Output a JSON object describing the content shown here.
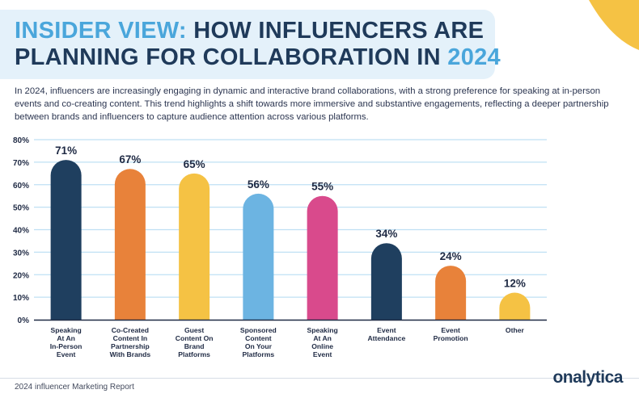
{
  "title": {
    "accent": "INSIDER VIEW:",
    "line1_rest": "HOW INFLUENCERS ARE",
    "line2": "PLANNING FOR COLLABORATION IN",
    "year": "2024"
  },
  "intro": "In 2024, influencers are increasingly engaging in dynamic and interactive brand collaborations, with a strong preference for speaking at in-person events and co-creating content. This trend highlights a shift towards more immersive and substantive engagements, reflecting a deeper partnership between brands and influencers to capture audience attention across various platforms.",
  "footer": {
    "report": "2024 influencer Marketing Report",
    "logo": "onalytica"
  },
  "chart_data": {
    "type": "bar",
    "title": "",
    "xlabel": "",
    "ylabel": "",
    "ylim": [
      0,
      80
    ],
    "yticks": [
      "0%",
      "10%",
      "20%",
      "30%",
      "40%",
      "50%",
      "60%",
      "70%",
      "80%"
    ],
    "grid": true,
    "categories": [
      "Speaking\nAt An\nIn-Person\nEvent",
      "Co-Created\nContent In\nPartnership\nWith Brands",
      "Guest\nContent On\nBrand\nPlatforms",
      "Sponsored\nContent\nOn Your\nPlatforms",
      "Speaking\nAt An\nOnline\nEvent",
      "Event\nAttendance",
      "Event\nPromotion",
      "Other"
    ],
    "values": [
      71,
      67,
      65,
      56,
      55,
      34,
      24,
      12
    ],
    "value_labels": [
      "71%",
      "67%",
      "65%",
      "56%",
      "55%",
      "34%",
      "24%",
      "12%"
    ],
    "colors": [
      "#1f3f5f",
      "#e8823a",
      "#f5c244",
      "#6cb4e2",
      "#d94a8c",
      "#1f3f5f",
      "#e8823a",
      "#f5c244"
    ],
    "grid_color": "#bfe0f4",
    "axis_color": "#1f2a44"
  }
}
